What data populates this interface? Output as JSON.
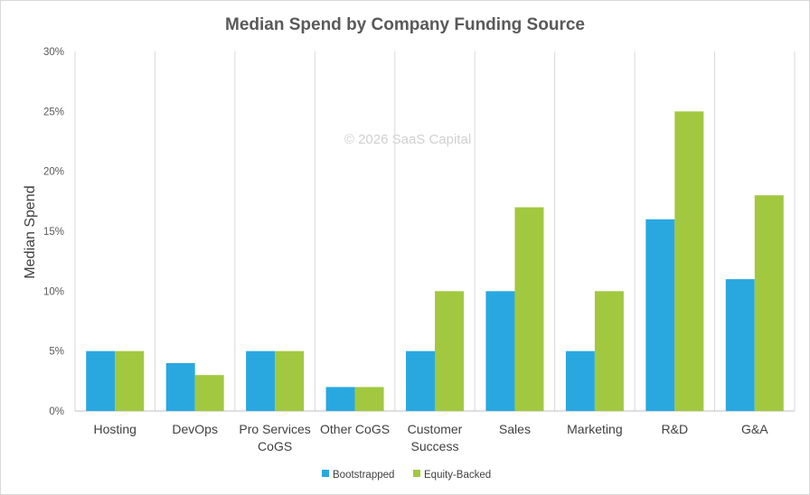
{
  "colors": {
    "bootstrapped": "#29a8e0",
    "equity_backed": "#a2c840",
    "grid": "#d9d9d9",
    "text": "#595959"
  },
  "watermark": "© 2026 SaaS Capital",
  "chart_data": {
    "type": "bar",
    "title": "Median Spend by Company Funding Source",
    "xlabel": "",
    "ylabel": "Median Spend",
    "ylim": [
      0,
      30
    ],
    "yticks": [
      "0%",
      "5%",
      "10%",
      "15%",
      "20%",
      "25%",
      "30%"
    ],
    "categories": [
      [
        "Hosting"
      ],
      [
        "DevOps"
      ],
      [
        "Pro Services",
        "CoGS"
      ],
      [
        "Other CoGS"
      ],
      [
        "Customer",
        "Success"
      ],
      [
        "Sales"
      ],
      [
        "Marketing"
      ],
      [
        "R&D"
      ],
      [
        "G&A"
      ]
    ],
    "series": [
      {
        "name": "Bootstrapped",
        "color": "#29a8e0",
        "values": [
          5,
          4,
          5,
          2,
          5,
          10,
          5,
          16,
          11
        ]
      },
      {
        "name": "Equity-Backed",
        "color": "#a2c840",
        "values": [
          5,
          3,
          5,
          2,
          10,
          17,
          10,
          25,
          18
        ]
      }
    ],
    "grid": "vertical category separators",
    "legend": "bottom-center"
  }
}
